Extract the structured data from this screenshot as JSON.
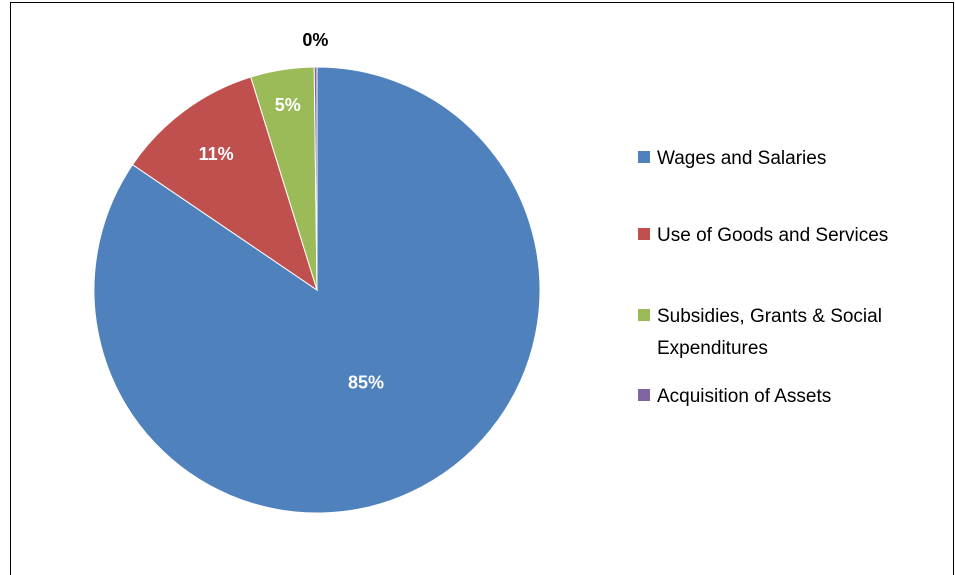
{
  "chart_data": {
    "type": "pie",
    "title": "",
    "categories": [
      "Wages and Salaries",
      "Use of Goods and Services",
      "Subsidies, Grants & Social Expenditures",
      "Acquisition of Assets"
    ],
    "values": [
      84.5,
      10.7,
      4.6,
      0.2
    ],
    "data_labels": [
      "85%",
      "11%",
      "5%",
      "0%"
    ],
    "colors": [
      "#4F81BD",
      "#C0504D",
      "#9BBB59",
      "#8064A2"
    ],
    "legend": {
      "placement": "right",
      "entries": [
        {
          "lines": [
            "Wages and Salaries"
          ]
        },
        {
          "lines": [
            "Use of Goods and Services"
          ]
        },
        {
          "lines": [
            "Subsidies, Grants & Social",
            "Expenditures"
          ]
        },
        {
          "lines": [
            "Acquisition of Assets"
          ]
        }
      ]
    }
  }
}
